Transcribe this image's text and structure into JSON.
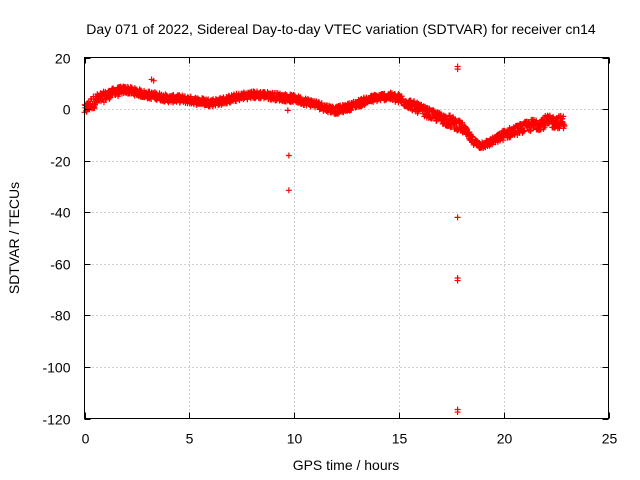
{
  "chart_data": {
    "type": "scatter",
    "title": "Day 071 of 2022, Sidereal Day-to-day VTEC variation (SDTVAR) for receiver cn14",
    "xlabel": "GPS time / hours",
    "ylabel": "SDTVAR / TECUs",
    "xlim": [
      0,
      25
    ],
    "ylim": [
      -120,
      20
    ],
    "x_ticks": [
      0,
      5,
      10,
      15,
      20,
      25
    ],
    "x_tick_labels": [
      "0",
      "5",
      "10",
      "15",
      "20",
      "25"
    ],
    "y_ticks": [
      20,
      0,
      -20,
      -40,
      -60,
      -80,
      -100,
      -120
    ],
    "y_tick_labels": [
      "20",
      "0",
      "-20",
      "-40",
      "-60",
      "-80",
      "-100",
      "-120"
    ],
    "grid": true,
    "marker": "+",
    "color": "#ff0000",
    "series": [
      {
        "name": "SDTVAR main band",
        "band": true,
        "x": [
          0.0,
          0.3,
          0.6,
          1.0,
          1.5,
          2.0,
          2.5,
          3.0,
          3.5,
          4.0,
          4.5,
          5.0,
          5.5,
          6.0,
          6.5,
          7.0,
          7.5,
          8.0,
          8.5,
          9.0,
          9.5,
          10.0,
          10.5,
          11.0,
          11.5,
          12.0,
          12.5,
          13.0,
          13.5,
          14.0,
          14.5,
          15.0,
          15.5,
          16.0,
          16.5,
          17.0,
          17.5,
          18.0,
          18.5,
          18.8,
          19.2,
          19.6,
          20.0,
          20.5,
          21.0,
          21.5,
          22.0,
          22.5,
          22.9
        ],
        "y": [
          -0.5,
          2.0,
          3.5,
          5.0,
          7.0,
          7.5,
          6.5,
          5.5,
          5.0,
          4.0,
          4.0,
          3.5,
          3.0,
          2.5,
          3.0,
          4.0,
          5.0,
          5.5,
          5.5,
          5.0,
          4.5,
          4.0,
          3.0,
          2.0,
          0.5,
          -0.5,
          0.5,
          2.0,
          3.5,
          4.5,
          5.0,
          4.0,
          2.0,
          0.0,
          -2.0,
          -3.5,
          -5.0,
          -7.0,
          -12.0,
          -14.0,
          -13.5,
          -12.0,
          -10.0,
          -8.5,
          -7.0,
          -6.0,
          -5.0,
          -5.0,
          -5.0
        ],
        "half_width": [
          2.0,
          2.5,
          2.5,
          2.0,
          1.5,
          1.5,
          1.5,
          1.5,
          1.5,
          1.5,
          1.5,
          1.5,
          1.5,
          1.5,
          1.5,
          1.5,
          1.5,
          1.5,
          1.5,
          1.5,
          1.5,
          1.5,
          1.5,
          1.5,
          1.5,
          1.5,
          1.5,
          1.5,
          1.5,
          1.5,
          1.5,
          2.0,
          2.0,
          2.0,
          2.0,
          2.0,
          2.5,
          2.0,
          1.5,
          1.5,
          1.5,
          1.5,
          2.0,
          2.0,
          2.0,
          2.5,
          2.5,
          2.5,
          2.5
        ]
      },
      {
        "name": "outliers",
        "x": [
          1.6,
          3.2,
          3.3,
          9.7,
          9.75,
          9.75,
          17.8,
          17.8,
          17.8,
          17.8,
          17.8,
          17.8,
          17.8
        ],
        "y": [
          5.0,
          11.5,
          11.0,
          -0.5,
          -18.0,
          -31.5,
          16.5,
          15.5,
          -42.0,
          -65.5,
          -66.5,
          -116.5,
          -117.5
        ]
      }
    ]
  }
}
